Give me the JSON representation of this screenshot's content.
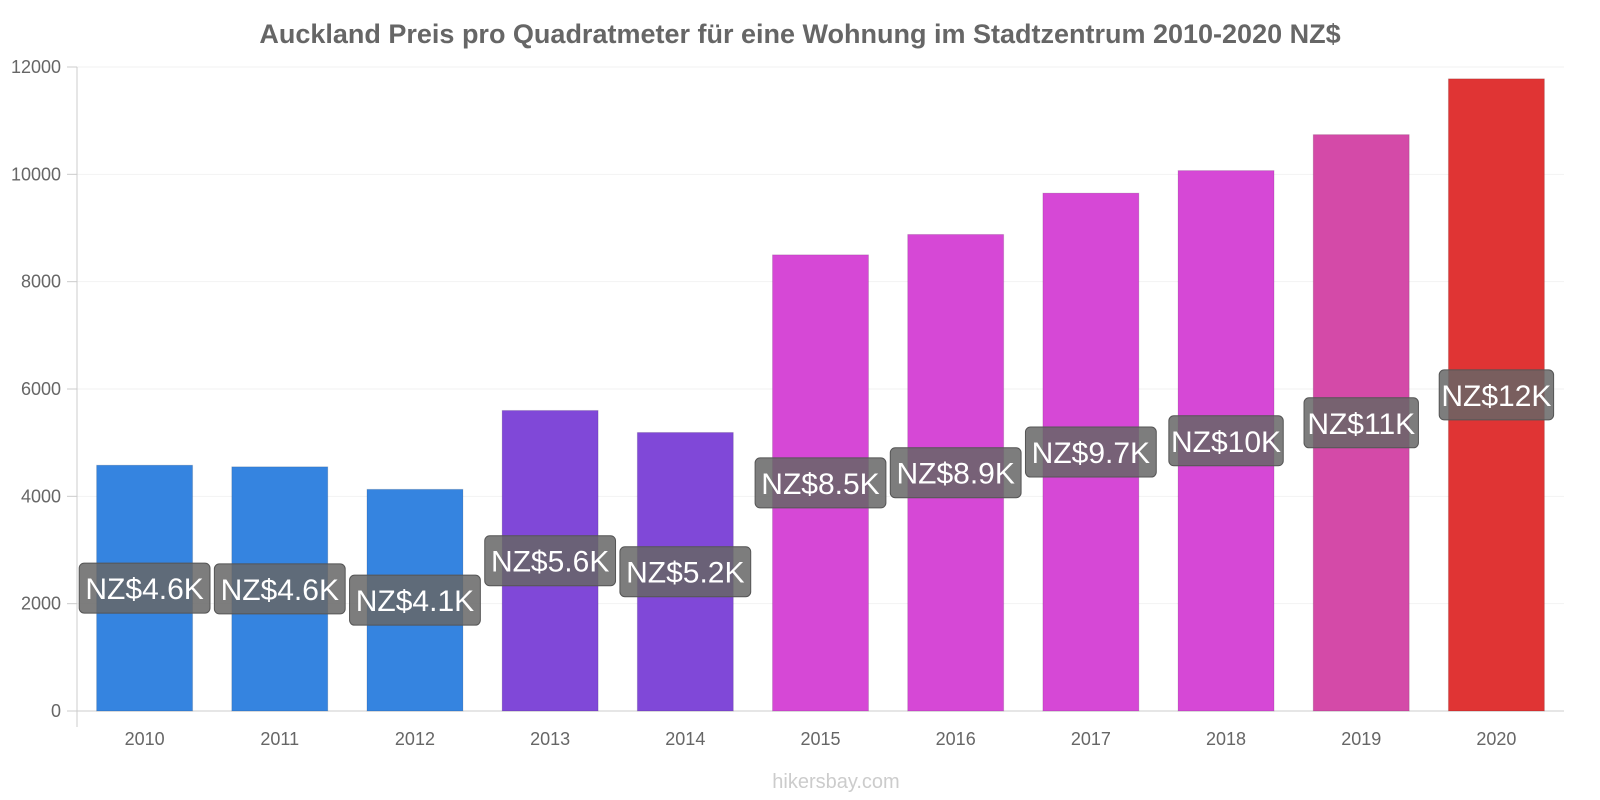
{
  "chart_data": {
    "type": "bar",
    "title": "Auckland Preis pro Quadratmeter für eine Wohnung im Stadtzentrum 2010-2020 NZ$",
    "xlabel": "",
    "ylabel": "",
    "categories": [
      "2010",
      "2011",
      "2012",
      "2013",
      "2014",
      "2015",
      "2016",
      "2017",
      "2018",
      "2019",
      "2020"
    ],
    "values": [
      4580,
      4550,
      4130,
      5600,
      5190,
      8500,
      8880,
      9650,
      10070,
      10740,
      11780
    ],
    "data_labels": [
      "NZ$4.6K",
      "NZ$4.6K",
      "NZ$4.1K",
      "NZ$5.6K",
      "NZ$5.2K",
      "NZ$8.5K",
      "NZ$8.9K",
      "NZ$9.7K",
      "NZ$10K",
      "NZ$11K",
      "NZ$12K"
    ],
    "bar_colors": [
      "#3584e0",
      "#3584e0",
      "#3584e0",
      "#8048d8",
      "#8048d8",
      "#d648d6",
      "#d648d6",
      "#d648d6",
      "#d648d6",
      "#d44aa8",
      "#e03434"
    ],
    "label_box_color": "#666666",
    "yticks": [
      0,
      2000,
      4000,
      6000,
      8000,
      10000,
      12000
    ],
    "ylim": [
      0,
      12000
    ],
    "grid": true,
    "legend": "none"
  },
  "footer": {
    "watermark": "hikersbay.com"
  }
}
